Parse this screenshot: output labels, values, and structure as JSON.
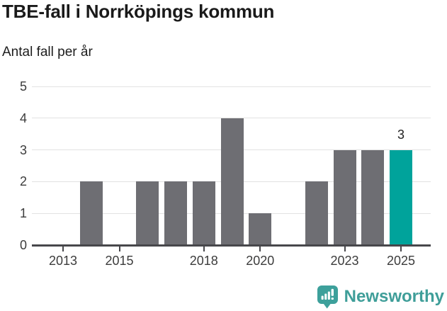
{
  "title": "TBE-fall i Norrköpings kommun",
  "subtitle": "Antal fall per år",
  "chart_data": {
    "type": "bar",
    "title": "TBE-fall i Norrköpings kommun",
    "subtitle": "Antal fall per år",
    "xlabel": "",
    "ylabel": "Antal fall per år",
    "categories": [
      2013,
      2014,
      2015,
      2016,
      2017,
      2018,
      2019,
      2020,
      2021,
      2022,
      2023,
      2024,
      2025
    ],
    "values": [
      0,
      2,
      0,
      2,
      2,
      2,
      4,
      1,
      0,
      2,
      3,
      3,
      3
    ],
    "ylim": [
      0,
      5
    ],
    "yticks": [
      0,
      1,
      2,
      3,
      4,
      5
    ],
    "xticks": [
      2013,
      2015,
      2018,
      2020,
      2023,
      2025
    ],
    "grid": "horizontal",
    "legend": "none",
    "bar_color": "#6e6e73",
    "highlight": {
      "category": 2025,
      "color": "#00a39b",
      "label": "3"
    },
    "axis_color": "#47474b",
    "grid_color": "#e2e2e2"
  },
  "footer": {
    "brand": "Newsworthy",
    "logo_icon": "newsworthy-speech-bubble-chart-icon",
    "brand_color": "#3f9e99"
  }
}
